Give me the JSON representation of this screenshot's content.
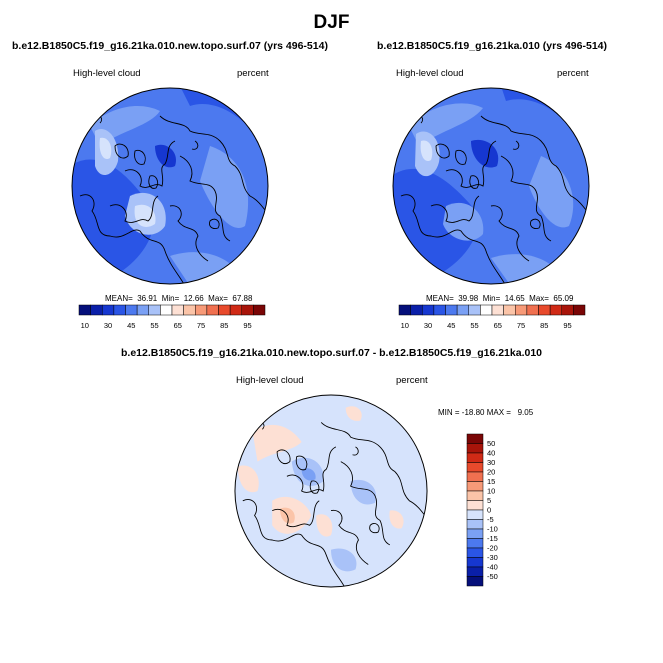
{
  "page": {
    "title": "DJF"
  },
  "colors": {
    "blues": [
      "#050f7a",
      "#0a1fa8",
      "#1637d0",
      "#2a55e6",
      "#4c79ef",
      "#7aa0f4",
      "#a9c2f8",
      "#d6e3fc"
    ],
    "reds": [
      "#fde0d4",
      "#fbc4a8",
      "#f79a78",
      "#f07050",
      "#e84a2c",
      "#d02a16",
      "#a8140a",
      "#7a0606"
    ],
    "white": "#ffffff",
    "land_outline": "#000000"
  },
  "chart_data": [
    {
      "type": "heatmap",
      "panel": "left",
      "title": "b.e12.B1850C5.f19_g16.21ka.010.new.topo.surf.07 (yrs 496-514)",
      "variable": "High-level cloud",
      "units": "percent",
      "projection": "polar stereographic (north)",
      "stats": {
        "mean": 36.91,
        "min": 12.66,
        "max": 67.88
      },
      "stats_text": "MEAN=  36.91  Min=  12.66  Max=  67.88",
      "colorbar": {
        "orientation": "horizontal",
        "levels": [
          10,
          20,
          30,
          40,
          45,
          50,
          55,
          60,
          65,
          70,
          75,
          80,
          85,
          90,
          95
        ],
        "labels": [
          "10",
          "30",
          "45",
          "55",
          "65",
          "75",
          "85",
          "95"
        ]
      }
    },
    {
      "type": "heatmap",
      "panel": "right",
      "title": "b.e12.B1850C5.f19_g16.21ka.010 (yrs 496-514)",
      "variable": "High-level cloud",
      "units": "percent",
      "projection": "polar stereographic (north)",
      "stats": {
        "mean": 39.98,
        "min": 14.65,
        "max": 65.09
      },
      "stats_text": "MEAN=  39.98  Min=  14.65  Max=  65.09",
      "colorbar": {
        "orientation": "horizontal",
        "levels": [
          10,
          20,
          30,
          40,
          45,
          50,
          55,
          60,
          65,
          70,
          75,
          80,
          85,
          90,
          95
        ],
        "labels": [
          "10",
          "30",
          "45",
          "55",
          "65",
          "75",
          "85",
          "95"
        ]
      }
    },
    {
      "type": "heatmap",
      "panel": "difference",
      "title": "b.e12.B1850C5.f19_g16.21ka.010.new.topo.surf.07 - b.e12.B1850C5.f19_g16.21ka.010",
      "variable": "High-level cloud",
      "units": "percent",
      "projection": "polar stereographic (north)",
      "stats": {
        "min": -18.8,
        "max": 9.05
      },
      "stats_text": "MIN = -18.80 MAX =   9.05",
      "colorbar": {
        "orientation": "vertical",
        "labels": [
          "50",
          "40",
          "30",
          "20",
          "15",
          "10",
          "5",
          "0",
          "-5",
          "-10",
          "-15",
          "-20",
          "-30",
          "-40",
          "-50"
        ]
      }
    }
  ]
}
